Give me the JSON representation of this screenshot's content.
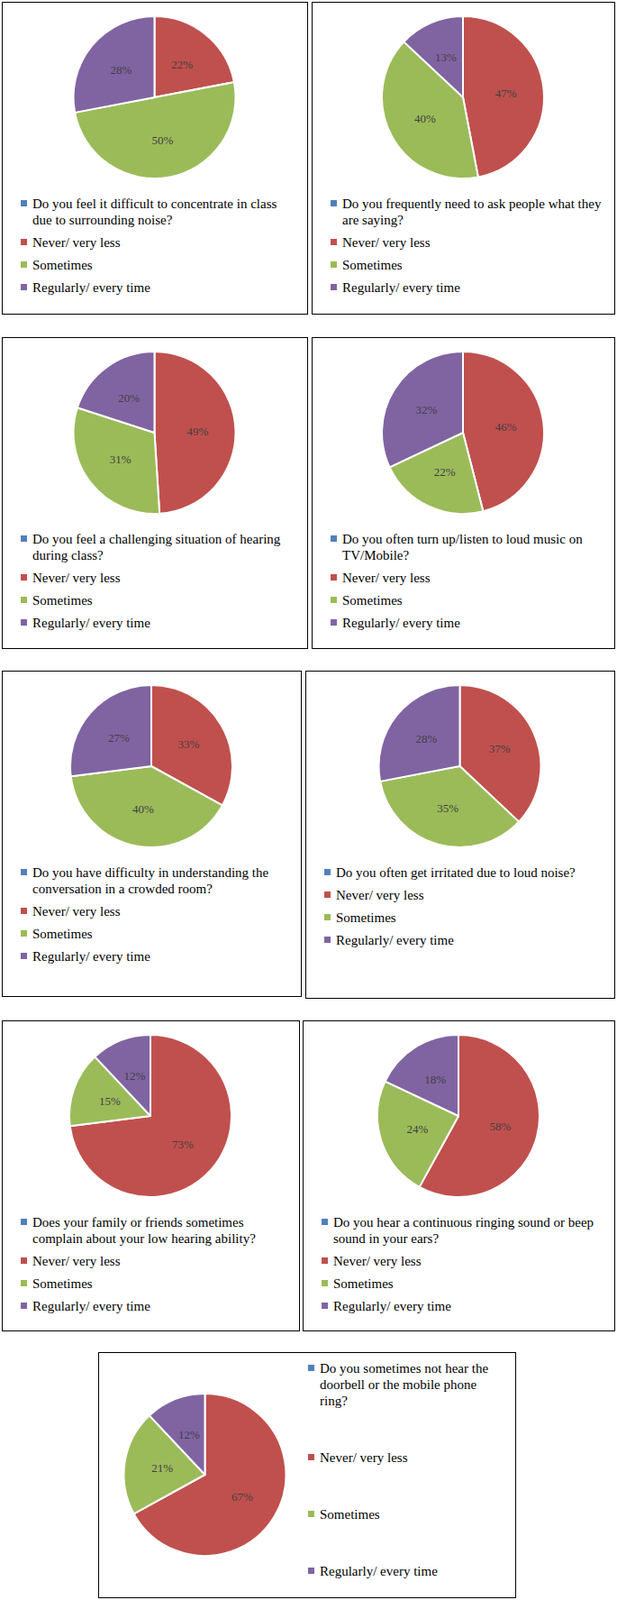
{
  "chart_data": [
    {
      "type": "pie",
      "title": "Do you feel it difficult to concentrate in class due to surrounding noise?",
      "categories": [
        "Never/ very less",
        "Sometimes",
        "Regularly/ every time"
      ],
      "values": [
        22,
        50,
        28
      ],
      "value_labels": [
        "22%",
        "50%",
        "28%"
      ],
      "colors": [
        "#c0504d",
        "#9bbb59",
        "#8064a2"
      ],
      "data_labels": true,
      "legend": "bottom"
    },
    {
      "type": "pie",
      "title": "Do you frequently need to ask people what they are saying?",
      "categories": [
        "Never/ very less",
        "Sometimes",
        "Regularly/ every time"
      ],
      "values": [
        47,
        40,
        13
      ],
      "value_labels": [
        "47%",
        "40%",
        "13%"
      ],
      "colors": [
        "#c0504d",
        "#9bbb59",
        "#8064a2"
      ],
      "data_labels": true,
      "legend": "bottom"
    },
    {
      "type": "pie",
      "title": "Do you feel a challenging situation of hearing during class?",
      "categories": [
        "Never/ very less",
        "Sometimes",
        "Regularly/ every time"
      ],
      "values": [
        49,
        31,
        20
      ],
      "value_labels": [
        "49%",
        "31%",
        "20%"
      ],
      "colors": [
        "#c0504d",
        "#9bbb59",
        "#8064a2"
      ],
      "data_labels": true,
      "legend": "bottom"
    },
    {
      "type": "pie",
      "title": "Do you often turn up/listen to loud music on TV/Mobile?",
      "categories": [
        "Never/ very less",
        "Sometimes",
        "Regularly/ every time"
      ],
      "values": [
        46,
        22,
        32
      ],
      "value_labels": [
        "46%",
        "22%",
        "32%"
      ],
      "colors": [
        "#c0504d",
        "#9bbb59",
        "#8064a2"
      ],
      "data_labels": true,
      "legend": "bottom"
    },
    {
      "type": "pie",
      "title": "Do you have difficulty in understanding the conversation in a crowded room?",
      "categories": [
        "Never/ very less",
        "Sometimes",
        "Regularly/ every time"
      ],
      "values": [
        33,
        40,
        27
      ],
      "value_labels": [
        "33%",
        "40%",
        "27%"
      ],
      "colors": [
        "#c0504d",
        "#9bbb59",
        "#8064a2"
      ],
      "data_labels": true,
      "legend": "bottom"
    },
    {
      "type": "pie",
      "title": "Do you often get irritated due to loud noise?",
      "categories": [
        "Never/ very less",
        "Sometimes",
        "Regularly/ every time"
      ],
      "values": [
        37,
        35,
        28
      ],
      "value_labels": [
        "37%",
        "35%",
        "28%"
      ],
      "colors": [
        "#c0504d",
        "#9bbb59",
        "#8064a2"
      ],
      "data_labels": true,
      "legend": "bottom"
    },
    {
      "type": "pie",
      "title": "Does your family or friends sometimes complain about your low hearing ability?",
      "categories": [
        "Never/ very less",
        "Sometimes",
        "Regularly/ every time"
      ],
      "values": [
        73,
        15,
        12
      ],
      "value_labels": [
        "73%",
        "15%",
        "12%"
      ],
      "colors": [
        "#c0504d",
        "#9bbb59",
        "#8064a2"
      ],
      "data_labels": true,
      "legend": "bottom"
    },
    {
      "type": "pie",
      "title": "Do you hear a continuous ringing sound or beep sound in your ears?",
      "categories": [
        "Never/ very less",
        "Sometimes",
        "Regularly/ every time"
      ],
      "values": [
        58,
        24,
        18
      ],
      "value_labels": [
        "58%",
        "24%",
        "18%"
      ],
      "colors": [
        "#c0504d",
        "#9bbb59",
        "#8064a2"
      ],
      "data_labels": true,
      "legend": "bottom"
    },
    {
      "type": "pie",
      "title": "Do you sometimes not hear the doorbell or the mobile phone ring?",
      "categories": [
        "Never/ very less",
        "Sometimes",
        "Regularly/ every time"
      ],
      "values": [
        67,
        21,
        12
      ],
      "value_labels": [
        "67%",
        "21%",
        "12%"
      ],
      "colors": [
        "#c0504d",
        "#9bbb59",
        "#8064a2"
      ],
      "data_labels": true,
      "legend": "right"
    }
  ]
}
